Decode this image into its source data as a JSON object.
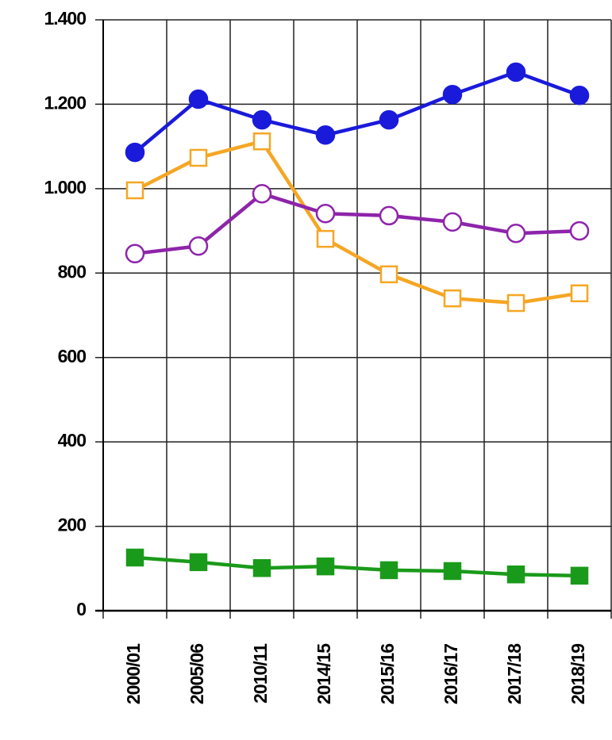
{
  "chart_data": {
    "type": "line",
    "categories": [
      "2000/01",
      "2005/06",
      "2010/11",
      "2014/15",
      "2015/16",
      "2016/17",
      "2017/18",
      "2018/19"
    ],
    "series": [
      {
        "color": "#1a1adb",
        "marker": "circle",
        "filled": true,
        "values": [
          1086,
          1212,
          1163,
          1127,
          1163,
          1223,
          1276,
          1221
        ]
      },
      {
        "color": "#f5a623",
        "marker": "square",
        "filled": false,
        "values": [
          996,
          1073,
          1112,
          881,
          797,
          740,
          729,
          752
        ]
      },
      {
        "color": "#8e24aa",
        "marker": "circle",
        "filled": false,
        "values": [
          846,
          864,
          988,
          941,
          936,
          921,
          894,
          900
        ]
      },
      {
        "color": "#1a9a1a",
        "marker": "square",
        "filled": true,
        "values": [
          126,
          115,
          101,
          105,
          96,
          94,
          86,
          83
        ]
      }
    ],
    "ylim": [
      0,
      1400
    ],
    "yticks": [
      0,
      200,
      400,
      600,
      800,
      {
        "value": 1000,
        "label": "1.000"
      },
      {
        "value": 1200,
        "label": "1.200"
      },
      {
        "value": 1400,
        "label": "1.400"
      }
    ],
    "grid": true
  }
}
